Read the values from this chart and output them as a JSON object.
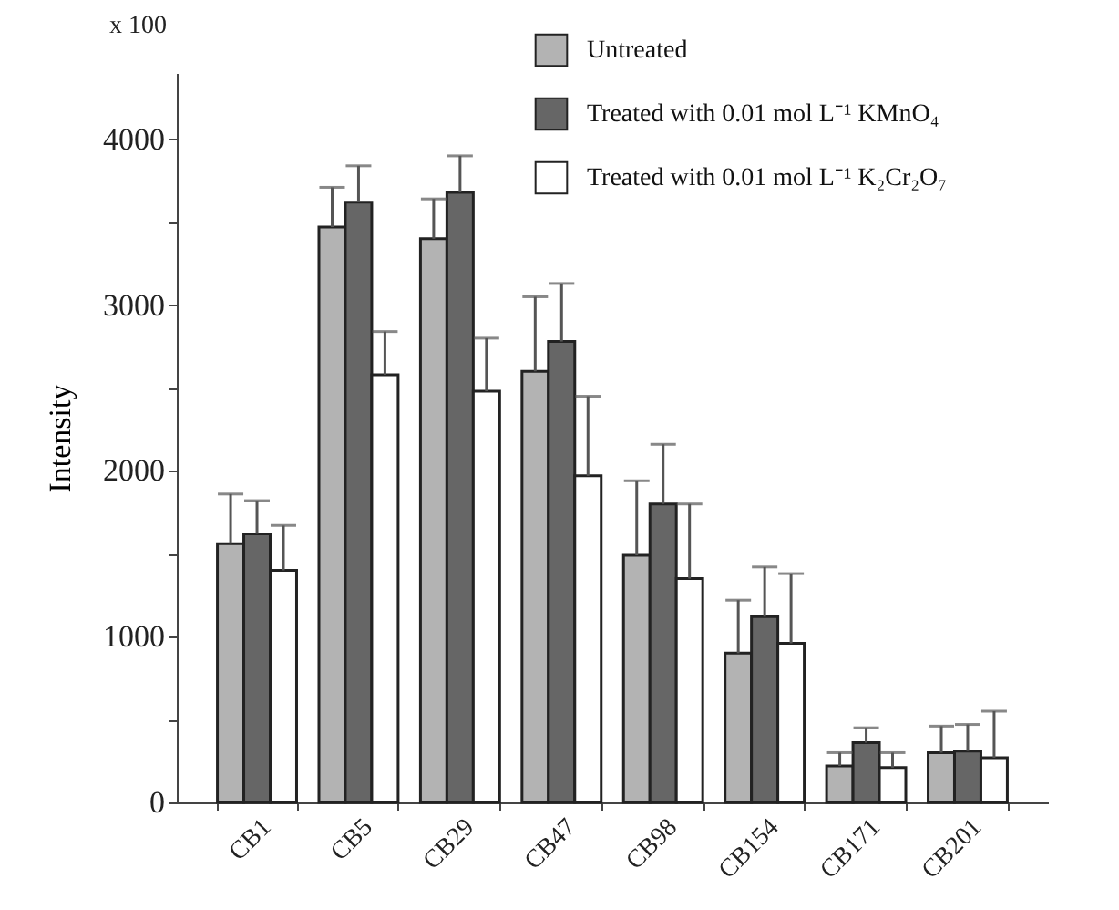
{
  "chart_data": {
    "type": "bar",
    "ylabel": "Intensity",
    "annotations": [
      "x 100"
    ],
    "categories": [
      "CB1",
      "CB5",
      "CB29",
      "CB47",
      "CB98",
      "CB154",
      "CB171",
      "CB201"
    ],
    "series": [
      {
        "name": "Untreated",
        "color": "#b3b3b3",
        "values": [
          1560,
          3470,
          3400,
          2600,
          1490,
          900,
          220,
          300
        ],
        "errors": [
          [
            1560,
            1860
          ],
          [
            3470,
            3710
          ],
          [
            3400,
            3640
          ],
          [
            2600,
            3050
          ],
          [
            1490,
            1940
          ],
          [
            900,
            1220
          ],
          [
            220,
            300
          ],
          [
            300,
            460
          ]
        ]
      },
      {
        "name": "Treated with 0.01 mol L⁻¹  KMnO₄",
        "color": "#666666",
        "values": [
          1620,
          3620,
          3680,
          2780,
          1800,
          1120,
          360,
          310
        ],
        "errors": [
          [
            1620,
            1820
          ],
          [
            3620,
            3840
          ],
          [
            3680,
            3900
          ],
          [
            2780,
            3130
          ],
          [
            1800,
            2160
          ],
          [
            1120,
            1420
          ],
          [
            360,
            450
          ],
          [
            310,
            470
          ]
        ]
      },
      {
        "name": "Treated with 0.01 mol L⁻¹  K₂Cr₂O₇",
        "color": "#ffffff",
        "values": [
          1400,
          2580,
          2480,
          1970,
          1350,
          960,
          210,
          270
        ],
        "errors": [
          [
            1400,
            1670
          ],
          [
            2580,
            2840
          ],
          [
            2480,
            2800
          ],
          [
            1970,
            2450
          ],
          [
            1350,
            1800
          ],
          [
            960,
            1380
          ],
          [
            210,
            300
          ],
          [
            270,
            550
          ]
        ]
      }
    ],
    "ylim": [
      0,
      4400
    ],
    "yticks": [
      0,
      {
        "value": 500,
        "label": null
      },
      1000,
      {
        "value": 1500,
        "label": null
      },
      2000,
      {
        "value": 2500,
        "label": null
      },
      3000,
      {
        "value": 3500,
        "label": null
      },
      4000
    ],
    "legend": "top right",
    "grid": false
  }
}
